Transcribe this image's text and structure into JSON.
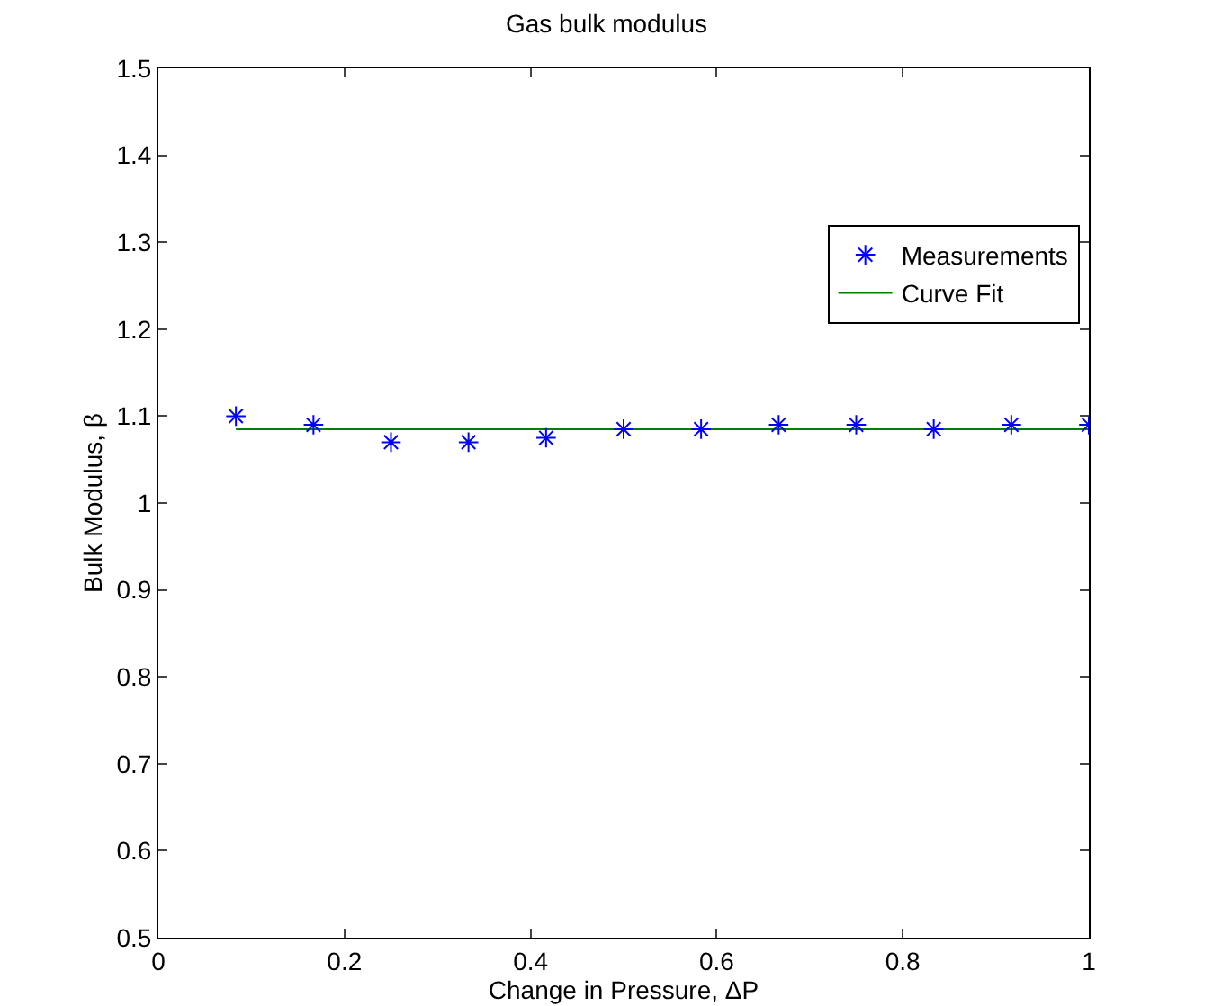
{
  "chart_data": {
    "type": "scatter",
    "title": "Gas bulk modulus",
    "xlabel": "Change in Pressure, ΔP",
    "ylabel": "Bulk Modulus, β",
    "xlim": [
      0,
      1
    ],
    "xticks": [
      0,
      0.2,
      0.4,
      0.6,
      0.8,
      1
    ],
    "ylim": [
      0.5,
      1.5
    ],
    "yticks": [
      0.5,
      0.6,
      0.7,
      0.8,
      0.9,
      1,
      1.1,
      1.2,
      1.3,
      1.4,
      1.5
    ],
    "grid": false,
    "legend": "top right",
    "marker": "cross",
    "series": [
      {
        "name": "Measurements",
        "color": "#0000ff",
        "x": [
          0.0833,
          0.1667,
          0.25,
          0.3333,
          0.4167,
          0.5,
          0.5833,
          0.6667,
          0.75,
          0.8333,
          0.9167,
          1
        ],
        "values": [
          1.1,
          1.09,
          1.07,
          1.07,
          1.075,
          1.085,
          1.085,
          1.09,
          1.09,
          1.085,
          1.09,
          1.09
        ]
      },
      {
        "name": "Curve Fit",
        "type": "line",
        "marker": "none",
        "color": "#008000",
        "x": [
          0.0833,
          1
        ],
        "values": [
          1.085,
          1.085
        ]
      }
    ]
  }
}
